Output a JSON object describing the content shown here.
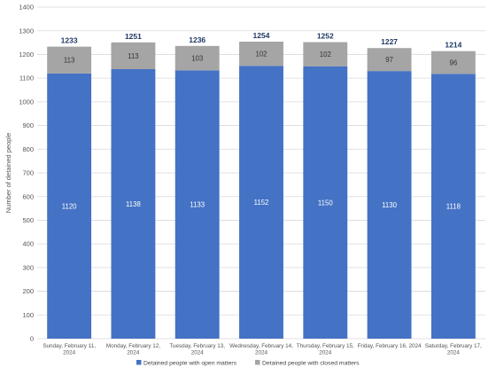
{
  "chart_data": {
    "type": "bar",
    "stacked": true,
    "categories": [
      [
        "Sunday, February 11,",
        "2024"
      ],
      [
        "Monday, February 12,",
        "2024"
      ],
      [
        "Tuesday, February 13,",
        "2024"
      ],
      [
        "Wednesday, February 14,",
        "2024"
      ],
      [
        "Thursday, February 15,",
        "2024"
      ],
      [
        "Friday, February 16, 2024"
      ],
      [
        "Saturday, February 17,",
        "2024"
      ]
    ],
    "series": [
      {
        "name": "Detained people with open matters",
        "values": [
          1120,
          1138,
          1133,
          1152,
          1150,
          1130,
          1118
        ],
        "color": "#4472c4"
      },
      {
        "name": "Detained people with closed matters",
        "values": [
          113,
          113,
          103,
          102,
          102,
          97,
          96
        ],
        "color": "#a5a5a5"
      }
    ],
    "totals": [
      1233,
      1251,
      1236,
      1254,
      1252,
      1227,
      1214
    ],
    "ylabel": "Number of detained people",
    "xlabel": "",
    "ylim": [
      0,
      1400
    ],
    "yticks": [
      0,
      100,
      200,
      300,
      400,
      500,
      600,
      700,
      800,
      900,
      1000,
      1100,
      1200,
      1300,
      1400
    ],
    "grid": true,
    "legend_position": "bottom",
    "colors": {
      "grid": "#d9d9d9",
      "axis_text": "#555555",
      "total_label": "#1f3864"
    }
  }
}
